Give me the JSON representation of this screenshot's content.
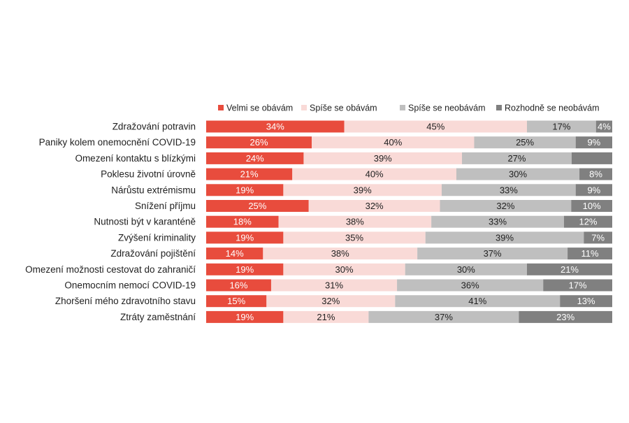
{
  "chart_data": {
    "type": "bar",
    "orientation": "horizontal",
    "stacked": "100%",
    "legend_position": "top",
    "grid": false,
    "categories": [
      "Zdražování potravin",
      "Paniky kolem onemocnění COVID-19",
      "Omezení kontaktu s blízkými",
      "Poklesu životní úrovně",
      "Nárůstu extrémismu",
      "Snížení příjmu",
      "Nutnosti být v karanténě",
      "Zvýšení kriminality",
      "Zdražování pojištění",
      "Omezení možnosti cestovat do zahraničí",
      "Onemocním nemocí COVID-19",
      "Zhoršení mého zdravotního stavu",
      "Ztráty zaměstnání"
    ],
    "series": [
      {
        "name": "Velmi se obávám",
        "color": "#e84c3d",
        "label_color": "#ffffff",
        "values": [
          34,
          26,
          24,
          21,
          19,
          25,
          18,
          19,
          14,
          19,
          16,
          15,
          19
        ]
      },
      {
        "name": "Spíše se obávám",
        "color": "#f9dad7",
        "label_color": "#222222",
        "values": [
          45,
          40,
          39,
          40,
          39,
          32,
          38,
          35,
          38,
          30,
          31,
          32,
          21
        ]
      },
      {
        "name": "Spíše se neobávám",
        "color": "#bfbfbf",
        "label_color": "#222222",
        "values": [
          17,
          25,
          27,
          30,
          33,
          32,
          33,
          39,
          37,
          30,
          36,
          41,
          37
        ]
      },
      {
        "name": "Rozhodně se neobávám",
        "color": "#808080",
        "label_color": "#ffffff",
        "values": [
          4,
          9,
          null,
          8,
          9,
          10,
          12,
          7,
          11,
          21,
          17,
          13,
          23
        ]
      }
    ]
  }
}
